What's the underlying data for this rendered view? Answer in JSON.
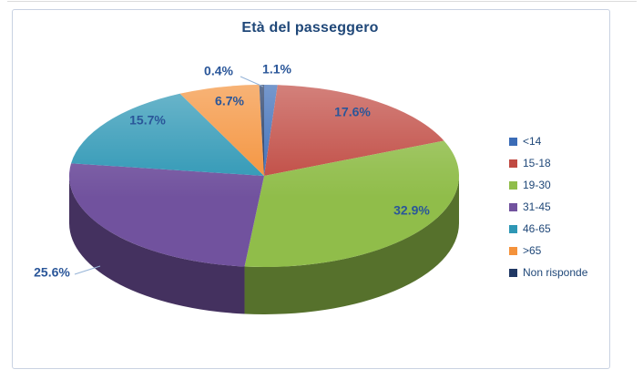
{
  "chart_data": {
    "type": "pie",
    "three_d": true,
    "title": "Età del passeggero",
    "categories": [
      "<14",
      "15-18",
      "19-30",
      "31-45",
      "46-65",
      ">65",
      "Non risponde"
    ],
    "values": [
      1.1,
      17.6,
      32.9,
      25.6,
      15.7,
      6.7,
      0.4
    ],
    "labels": [
      "1.1%",
      "17.6%",
      "32.9%",
      "25.6%",
      "15.7%",
      "6.7%",
      "0.4%"
    ],
    "colors": [
      "#3B6CB7",
      "#C04A42",
      "#90BD4A",
      "#71529E",
      "#2E97B5",
      "#F4923B",
      "#203864"
    ],
    "label_placement": [
      "outside",
      "inside",
      "inside",
      "outside",
      "inside",
      "inside",
      "outside"
    ],
    "legend_position": "right",
    "title_color": "#1F4778",
    "label_color": "#2A5699",
    "leader_line_color": "#95B3D7"
  }
}
